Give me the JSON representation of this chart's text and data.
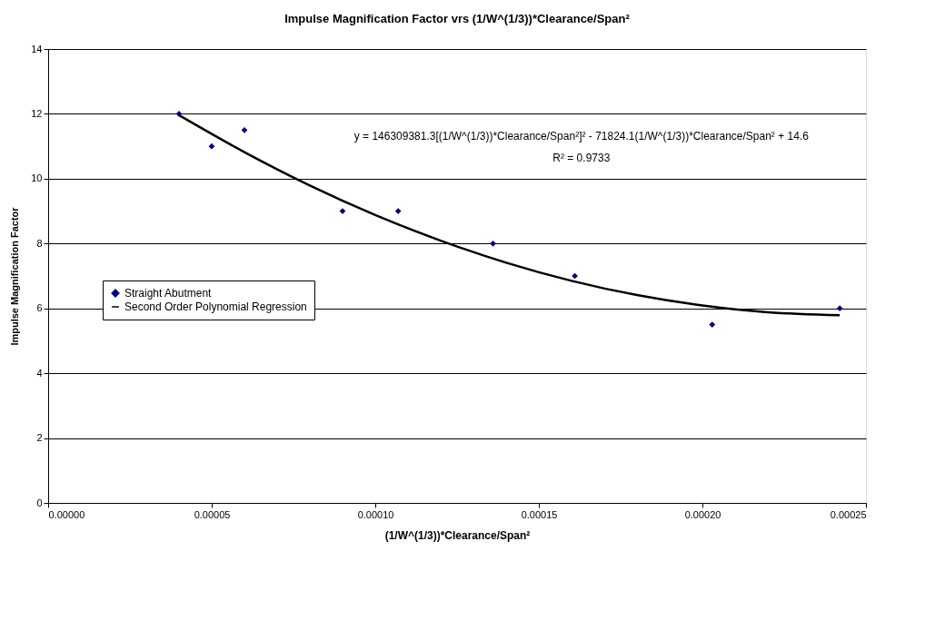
{
  "chart_data": {
    "type": "scatter",
    "title": "Impulse Magnification Factor vrs (1/W^(1/3))*Clearance/Span²",
    "xlabel": "(1/W^(1/3))*Clearance/Span²",
    "ylabel": "Impulse Magnification  Factor",
    "xlim": [
      0,
      0.00025
    ],
    "xticks": [
      {
        "value": 0,
        "label": "0.00000"
      },
      {
        "value": 5e-05,
        "label": "0.00005"
      },
      {
        "value": 0.0001,
        "label": "0.00010"
      },
      {
        "value": 0.00015,
        "label": "0.00015"
      },
      {
        "value": 0.0002,
        "label": "0.00020"
      },
      {
        "value": 0.00025,
        "label": "0.00025"
      }
    ],
    "ylim": [
      0,
      14
    ],
    "yticks": [
      0,
      2,
      4,
      6,
      8,
      10,
      12,
      14
    ],
    "grid": "y",
    "legend": "left",
    "marker": "diamond",
    "series": [
      {
        "name": "Straight Abutment",
        "color": "#000080",
        "x": [
          4e-05,
          5e-05,
          6e-05,
          9e-05,
          0.000107,
          0.000136,
          0.000161,
          0.000203,
          0.000242
        ],
        "values": [
          12,
          11,
          11.5,
          9,
          9,
          8,
          7,
          5.5,
          6
        ]
      },
      {
        "name": "Second Order Polynomial Regression",
        "type": "line",
        "marker": "none",
        "line_style": "solid",
        "color": "#000000",
        "x": [
          4e-05,
          6e-05,
          8e-05,
          0.0001,
          0.00012,
          0.00014,
          0.00016,
          0.00018,
          0.0002,
          0.00022,
          0.000242
        ],
        "values": [
          11.96,
          10.82,
          9.79,
          8.88,
          8.09,
          7.41,
          6.85,
          6.41,
          6.09,
          5.88,
          5.79
        ]
      }
    ],
    "annotations": [
      "y = 146309381.3[(1/W^(1/3))*Clearance/Span²]² - 71824.1(1/W^(1/3))*Clearance/Span² + 14.6",
      "R² = 0.9733"
    ]
  }
}
